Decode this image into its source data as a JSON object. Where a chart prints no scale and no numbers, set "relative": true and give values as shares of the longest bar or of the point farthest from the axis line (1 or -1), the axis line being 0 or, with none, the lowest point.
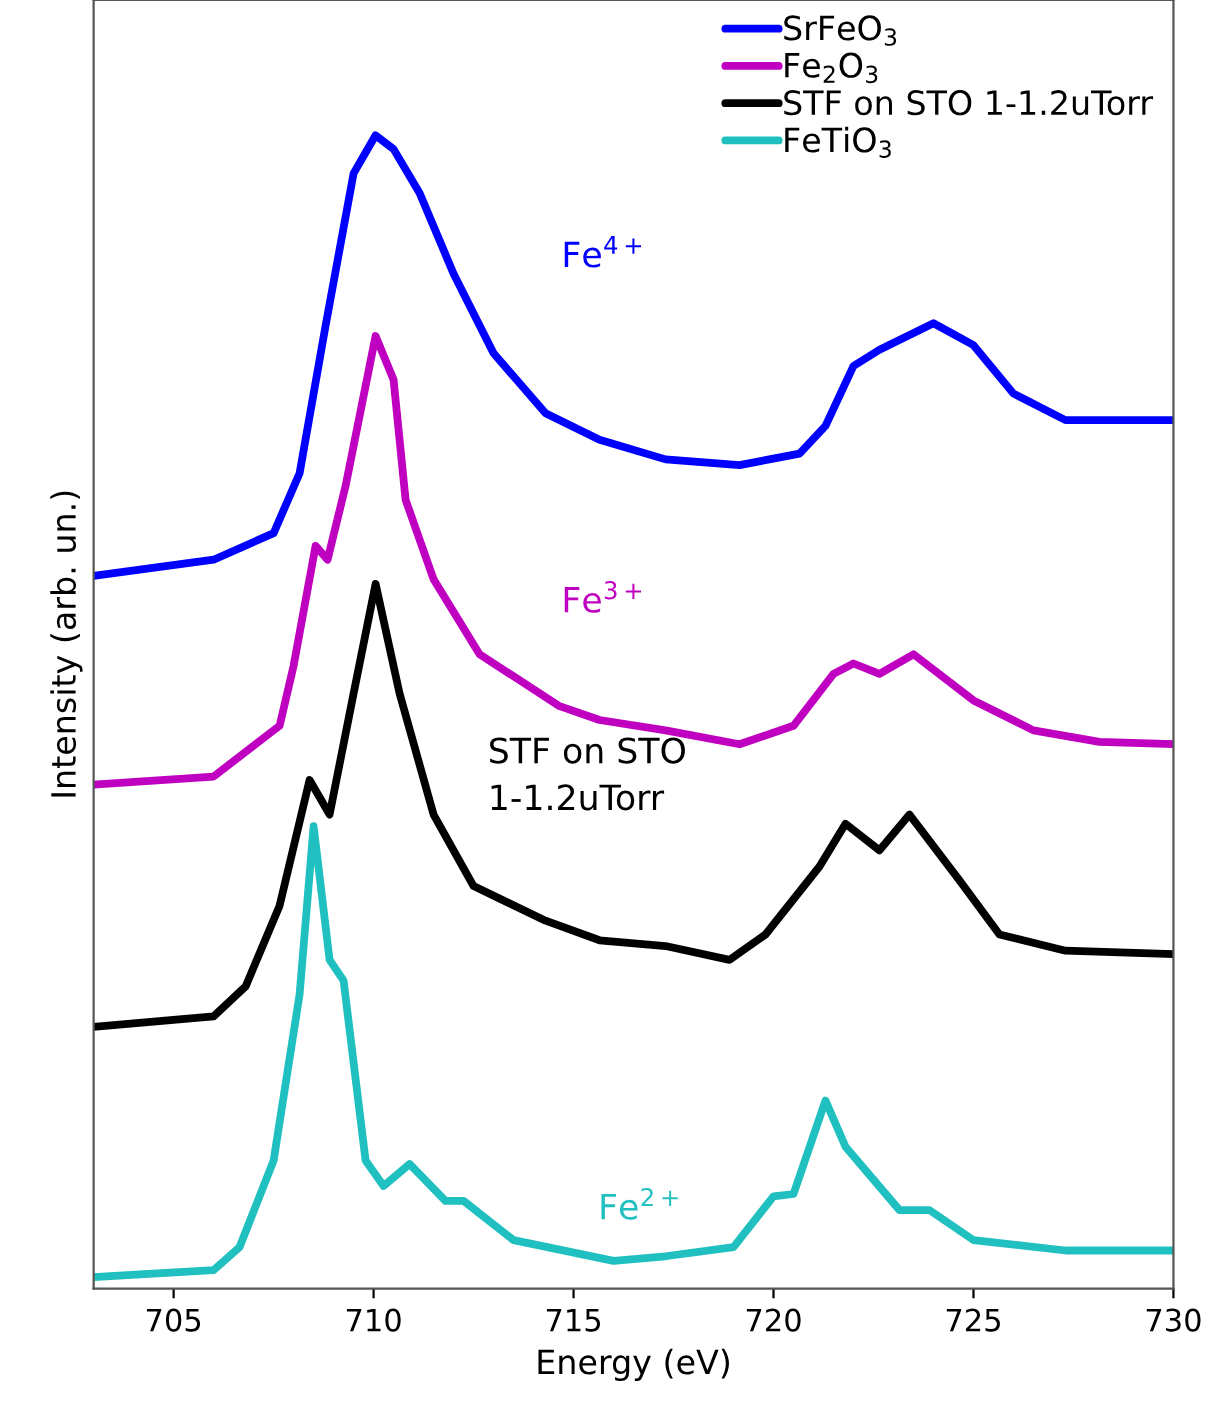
{
  "chart_data": {
    "type": "line",
    "relative": true,
    "xlabel": "Energy (eV)",
    "ylabel": "Intensity (arb. un.)",
    "xlim": [
      703,
      730
    ],
    "xticks": [
      705,
      710,
      715,
      720,
      725,
      730
    ],
    "grid": false,
    "legend": "top right",
    "line_style": "solid",
    "marker": "none",
    "tick_labels": "x",
    "series": [
      {
        "name": "SrFeO$_{3}$",
        "color": "#0000ff",
        "x": [
          703,
          706,
          707.5,
          708.15,
          708.8,
          709.5,
          710.05,
          710.5,
          711.15,
          712,
          713,
          714.3,
          715.65,
          717.3,
          719.15,
          720.65,
          721.3,
          722,
          722.65,
          724,
          725,
          726,
          727.3,
          730
        ],
        "values": [
          0.618,
          0.632,
          0.655,
          0.707,
          0.835,
          0.967,
          1,
          0.988,
          0.95,
          0.88,
          0.811,
          0.759,
          0.736,
          0.719,
          0.714,
          0.724,
          0.748,
          0.8,
          0.814,
          0.837,
          0.818,
          0.776,
          0.753,
          0.753
        ]
      },
      {
        "name": "Fe$_{2}$O$_{3}$",
        "color": "#c000c0",
        "x": [
          703,
          706,
          707.65,
          708,
          708.55,
          708.85,
          709.3,
          710.05,
          710.5,
          710.8,
          711.5,
          712.65,
          714.65,
          715.65,
          717.3,
          719.15,
          720.5,
          721.5,
          722,
          722.65,
          723.5,
          725,
          726.5,
          728.15,
          730
        ],
        "values": [
          0.437,
          0.444,
          0.488,
          0.54,
          0.644,
          0.632,
          0.696,
          0.826,
          0.788,
          0.684,
          0.615,
          0.55,
          0.505,
          0.493,
          0.484,
          0.472,
          0.488,
          0.533,
          0.542,
          0.533,
          0.55,
          0.51,
          0.484,
          0.474,
          0.472
        ]
      },
      {
        "name": "STF on STO 1-1.2uTorr",
        "color": "#000000",
        "x": [
          703,
          706,
          706.8,
          707.65,
          708.4,
          708.9,
          709.5,
          710.05,
          710.65,
          711.5,
          712.5,
          714.3,
          715.65,
          717.3,
          718.9,
          719.8,
          721.15,
          721.8,
          722.65,
          723.4,
          724.65,
          725.65,
          727.3,
          730
        ],
        "values": [
          0.227,
          0.236,
          0.262,
          0.332,
          0.441,
          0.411,
          0.516,
          0.611,
          0.516,
          0.411,
          0.349,
          0.319,
          0.302,
          0.297,
          0.285,
          0.307,
          0.366,
          0.403,
          0.38,
          0.411,
          0.354,
          0.307,
          0.293,
          0.29
        ]
      },
      {
        "name": "FeTiO$_{3}$",
        "color": "#20c0c0",
        "x": [
          703,
          706,
          706.65,
          707.5,
          708.15,
          708.5,
          708.9,
          709.25,
          709.8,
          710.25,
          710.9,
          711.8,
          712.25,
          713.5,
          716,
          717.3,
          719,
          720,
          720.5,
          721.3,
          721.8,
          723.15,
          723.9,
          725,
          727.3,
          730
        ],
        "values": [
          0.01,
          0.016,
          0.036,
          0.111,
          0.255,
          0.401,
          0.285,
          0.267,
          0.111,
          0.089,
          0.108,
          0.076,
          0.076,
          0.042,
          0.024,
          0.028,
          0.036,
          0.08,
          0.082,
          0.163,
          0.123,
          0.068,
          0.068,
          0.042,
          0.033,
          0.033
        ]
      }
    ],
    "annotations": [
      "Fe$^{4+}$",
      "Fe$^{3+}$",
      "STF on STO\n1-1.2uTorr",
      "Fe$^{2+}$"
    ]
  }
}
